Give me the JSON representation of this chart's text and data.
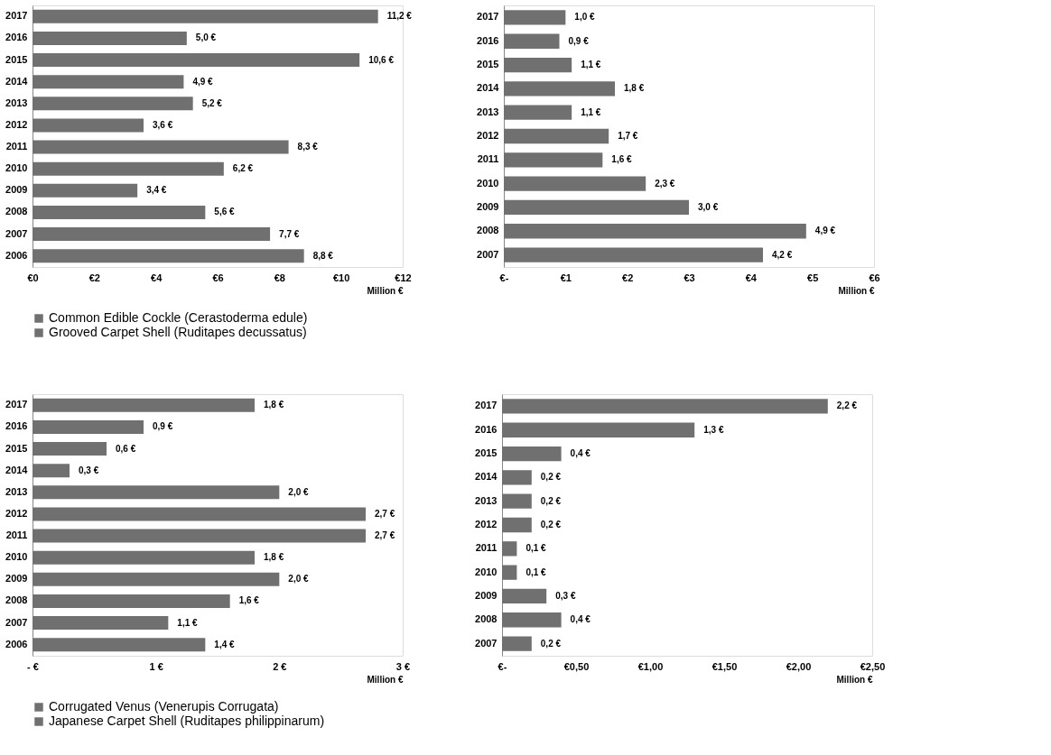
{
  "chart_data": [
    {
      "type": "bar",
      "orientation": "horizontal",
      "xlabel": "Million €",
      "legend": "bottom",
      "grid": false,
      "categories": [
        "2017",
        "2016",
        "2015",
        "2014",
        "2013",
        "2012",
        "2011",
        "2010",
        "2009",
        "2008",
        "2007",
        "2006"
      ],
      "series": [
        {
          "name": "Common Edible Cockle  (Cerastoderma edule)",
          "color": "#707070",
          "values": [
            11.2,
            5.0,
            10.6,
            4.9,
            5.2,
            3.6,
            8.3,
            6.2,
            3.4,
            5.6,
            7.7,
            8.8
          ],
          "value_labels": [
            "11,2 €",
            "5,0 €",
            "10,6 €",
            "4,9 €",
            "5,2 €",
            "3,6 €",
            "8,3 €",
            "6,2 €",
            "3,4 €",
            "5,6 €",
            "7,7 €",
            "8,8 €"
          ]
        }
      ],
      "xlim": [
        0,
        12
      ],
      "xticks": [
        {
          "value": 0,
          "label": "€0"
        },
        {
          "value": 2,
          "label": "€2"
        },
        {
          "value": 4,
          "label": "€4"
        },
        {
          "value": 6,
          "label": "€6"
        },
        {
          "value": 8,
          "label": "€8"
        },
        {
          "value": 10,
          "label": "€10"
        },
        {
          "value": 12,
          "label": "€12"
        }
      ]
    },
    {
      "type": "bar",
      "orientation": "horizontal",
      "xlabel": "Million €",
      "legend": "bottom",
      "grid": false,
      "categories": [
        "2017",
        "2016",
        "2015",
        "2014",
        "2013",
        "2012",
        "2011",
        "2010",
        "2009",
        "2008",
        "2007"
      ],
      "series": [
        {
          "name": "Grooved Carpet Shell  (Ruditapes decussatus)",
          "color": "#707070",
          "values": [
            1.0,
            0.9,
            1.1,
            1.8,
            1.1,
            1.7,
            1.6,
            2.3,
            3.0,
            4.9,
            4.2
          ],
          "value_labels": [
            "1,0 €",
            "0,9 €",
            "1,1 €",
            "1,8 €",
            "1,1 €",
            "1,7 €",
            "1,6 €",
            "2,3 €",
            "3,0 €",
            "4,9 €",
            "4,2 €"
          ]
        }
      ],
      "xlim": [
        0,
        6
      ],
      "xticks": [
        {
          "value": 0,
          "label": "€-"
        },
        {
          "value": 1,
          "label": "€1"
        },
        {
          "value": 2,
          "label": "€2"
        },
        {
          "value": 3,
          "label": "€3"
        },
        {
          "value": 4,
          "label": "€4"
        },
        {
          "value": 5,
          "label": "€5"
        },
        {
          "value": 6,
          "label": "€6"
        }
      ]
    },
    {
      "type": "bar",
      "orientation": "horizontal",
      "xlabel": "Million €",
      "legend": "bottom",
      "grid": false,
      "categories": [
        "2017",
        "2016",
        "2015",
        "2014",
        "2013",
        "2012",
        "2011",
        "2010",
        "2009",
        "2008",
        "2007",
        "2006"
      ],
      "series": [
        {
          "name": "Corrugated Venus (Venerupis Corrugata)",
          "color": "#707070",
          "values": [
            1.8,
            0.9,
            0.6,
            0.3,
            2.0,
            2.7,
            2.7,
            1.8,
            2.0,
            1.6,
            1.1,
            1.4
          ],
          "value_labels": [
            "1,8 €",
            "0,9 €",
            "0,6 €",
            "0,3 €",
            "2,0 €",
            "2,7 €",
            "2,7 €",
            "1,8 €",
            "2,0 €",
            "1,6 €",
            "1,1 €",
            "1,4 €"
          ]
        }
      ],
      "xlim": [
        0,
        3
      ],
      "xticks": [
        {
          "value": 0,
          "label": "- €"
        },
        {
          "value": 1,
          "label": "1 €"
        },
        {
          "value": 2,
          "label": "2 €"
        },
        {
          "value": 3,
          "label": "3 €"
        }
      ]
    },
    {
      "type": "bar",
      "orientation": "horizontal",
      "xlabel": "Million €",
      "legend": "bottom",
      "grid": false,
      "categories": [
        "2017",
        "2016",
        "2015",
        "2014",
        "2013",
        "2012",
        "2011",
        "2010",
        "2009",
        "2008",
        "2007"
      ],
      "series": [
        {
          "name": "Japanese Carpet Shell (Ruditapes philippinarum)",
          "color": "#707070",
          "values": [
            2.2,
            1.3,
            0.4,
            0.2,
            0.2,
            0.2,
            0.1,
            0.1,
            0.3,
            0.4,
            0.2
          ],
          "value_labels": [
            "2,2 €",
            "1,3 €",
            "0,4 €",
            "0,2 €",
            "0,2 €",
            "0,2 €",
            "0,1 €",
            "0,1 €",
            "0,3 €",
            "0,4 €",
            "0,2 €"
          ]
        }
      ],
      "xlim": [
        0,
        2.5
      ],
      "xticks": [
        {
          "value": 0,
          "label": "€-"
        },
        {
          "value": 0.5,
          "label": "€0,50"
        },
        {
          "value": 1,
          "label": "€1,00"
        },
        {
          "value": 1.5,
          "label": "€1,50"
        },
        {
          "value": 2,
          "label": "€2,00"
        },
        {
          "value": 2.5,
          "label": "€2,50"
        }
      ]
    }
  ]
}
